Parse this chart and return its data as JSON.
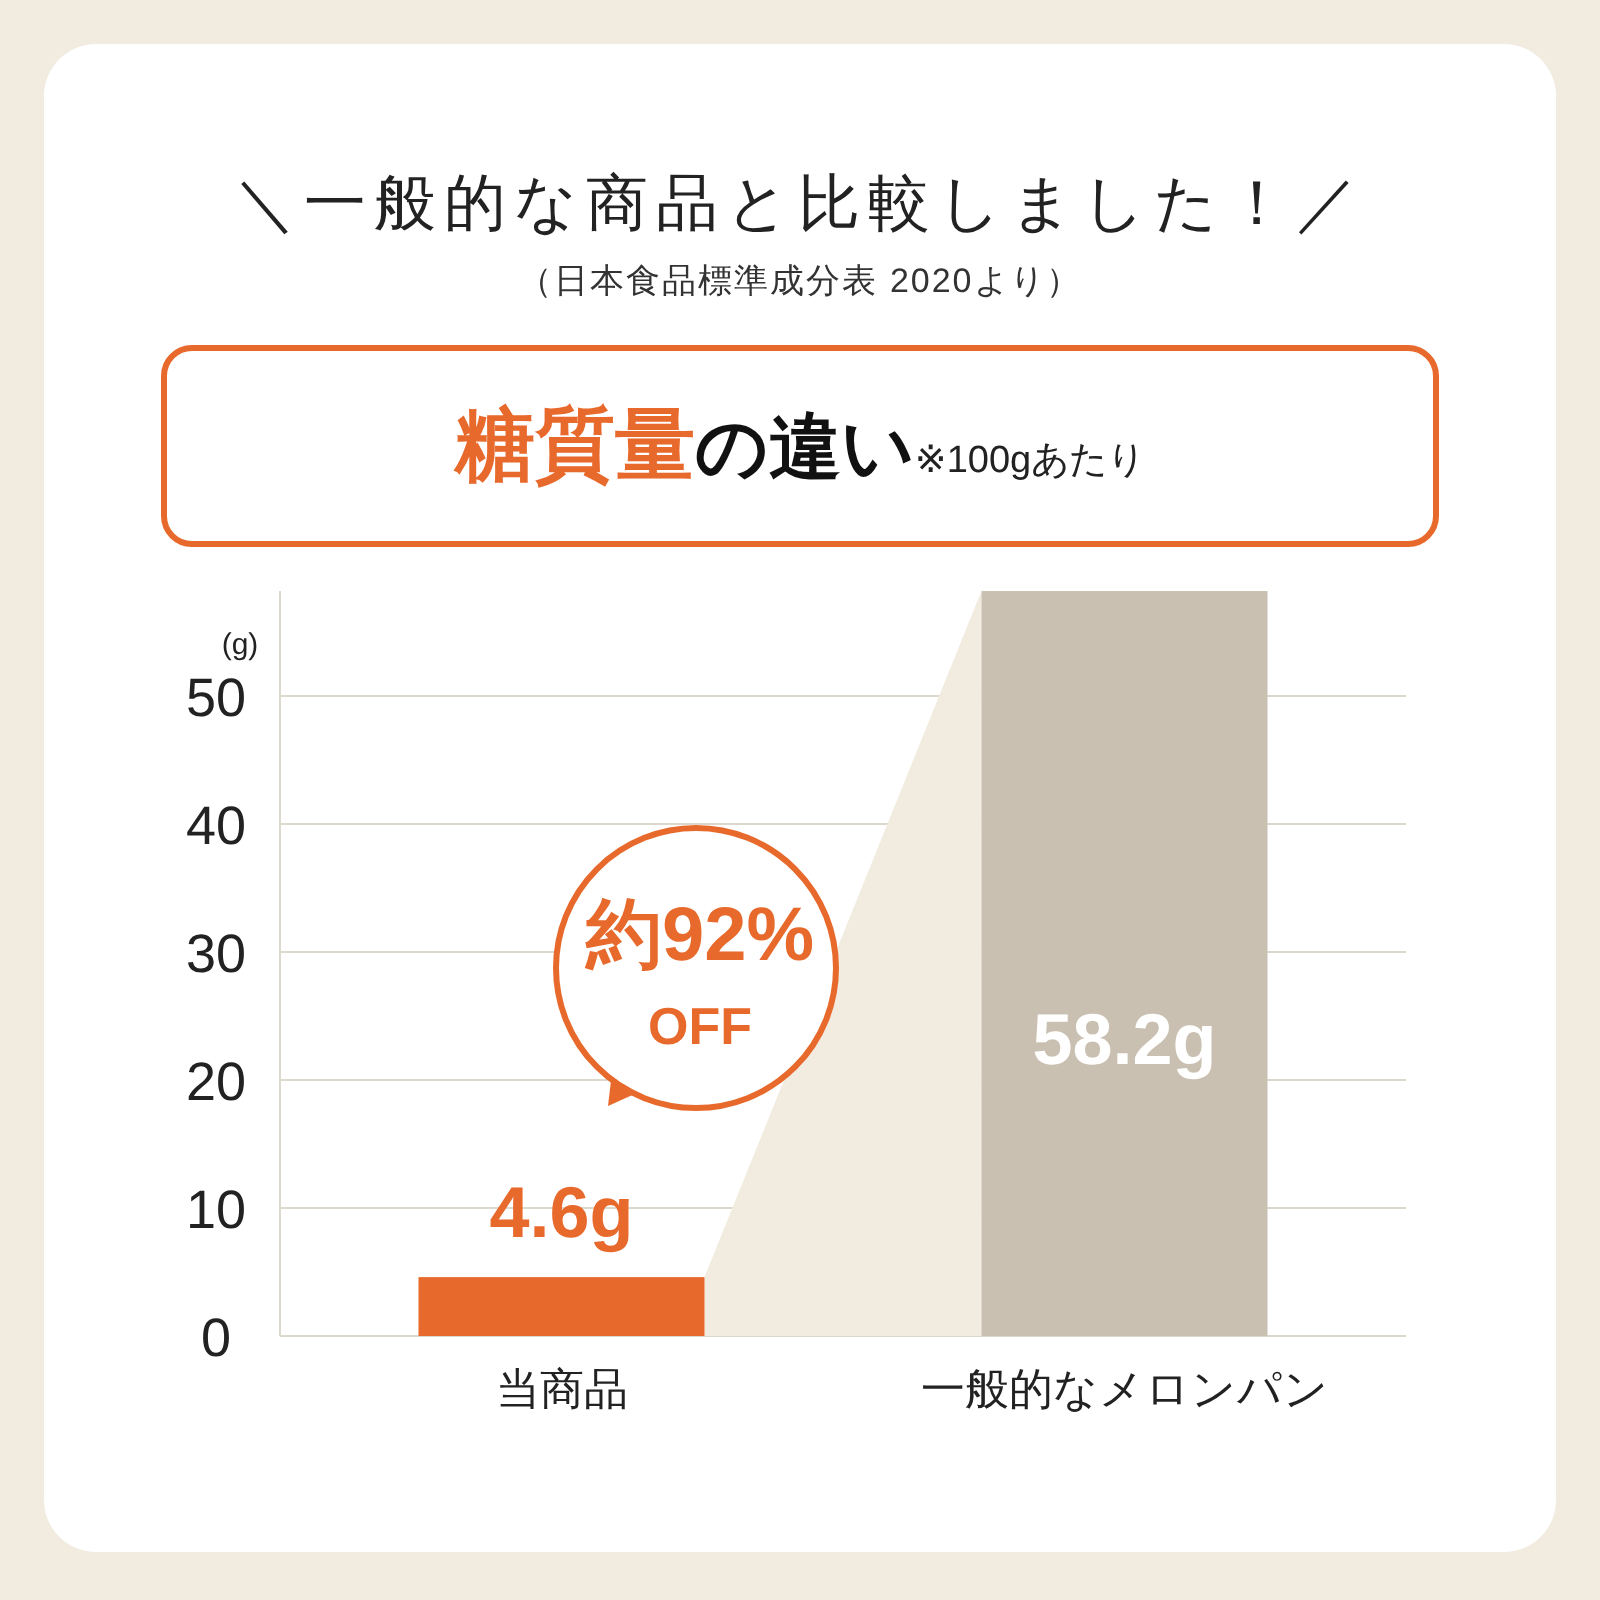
{
  "chart_data": {
    "type": "bar",
    "title": "＼一般的な商品と比較しました！／",
    "subtitle": "（日本食品標準成分表 2020より）",
    "ylabel": "(g)",
    "categories": [
      "当商品",
      "一般的なメロンパン"
    ],
    "values": [
      4.6,
      58.2
    ],
    "colors": [
      "#e8692c",
      "#c9c0b1"
    ],
    "value_labels": [
      "4.6g",
      "58.2g"
    ],
    "ylim": [
      0,
      58.2
    ],
    "yticks": [
      0,
      10,
      20,
      30,
      40,
      50
    ],
    "grid": "y",
    "annotations": [
      "糖質量",
      "の違い",
      "※100gあたり",
      "約92%",
      "OFF"
    ]
  }
}
